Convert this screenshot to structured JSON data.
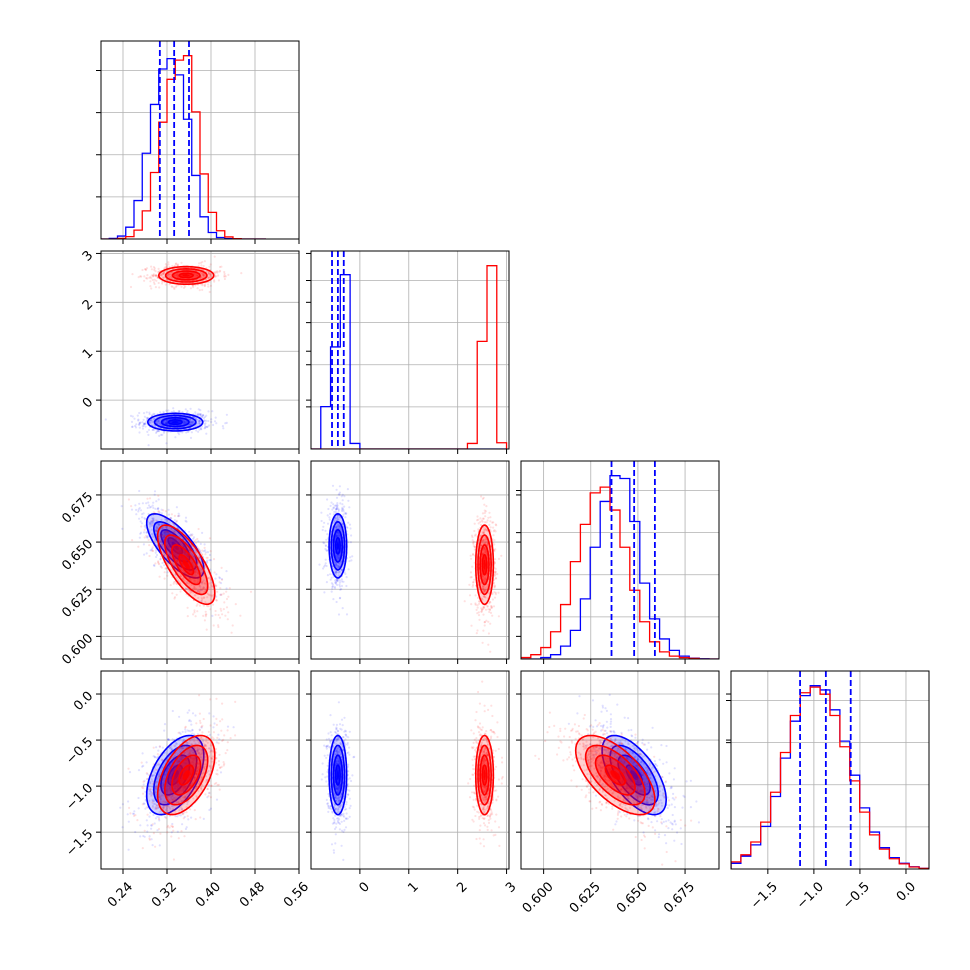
{
  "chart_data": {
    "type": "corner",
    "grid": true,
    "colors": {
      "series_a": "#0000ff",
      "series_b": "#ff0000"
    },
    "parameters": [
      {
        "range": [
          0.2,
          0.56
        ],
        "ticks": [
          "0.24",
          "0.32",
          "0.40",
          "0.48",
          "0.56"
        ],
        "tick_values": [
          0.24,
          0.32,
          0.4,
          0.48,
          0.56
        ]
      },
      {
        "range": [
          -1.0,
          3.05
        ],
        "ticks": [
          "0",
          "1",
          "2",
          "3"
        ],
        "tick_values": [
          0,
          1,
          2,
          3
        ]
      },
      {
        "range": [
          0.588,
          0.693
        ],
        "ticks": [
          "0.600",
          "0.625",
          "0.650",
          "0.675"
        ],
        "tick_values": [
          0.6,
          0.625,
          0.65,
          0.675
        ]
      },
      {
        "range": [
          -1.9,
          0.25
        ],
        "ticks": [
          "-1.5",
          "-1.0",
          "-0.5",
          "0.0"
        ],
        "tick_values": [
          -1.5,
          -1.0,
          -0.5,
          0.0
        ]
      }
    ],
    "y_ticks_rows": [
      null,
      {
        "ticks": [
          "3",
          "2",
          "1",
          "0"
        ],
        "tick_values": [
          3,
          2,
          1,
          0
        ]
      },
      {
        "ticks": [
          "0.675",
          "0.650",
          "0.625",
          "0.600"
        ],
        "tick_values": [
          0.675,
          0.65,
          0.625,
          0.6
        ]
      },
      {
        "ticks": [
          "0.0",
          "-0.5",
          "-1.0",
          "-1.5"
        ],
        "tick_values": [
          0.0,
          -0.5,
          -1.0,
          -1.5
        ]
      }
    ],
    "marginals": [
      {
        "quantiles": [
          0.307,
          0.333,
          0.36
        ],
        "bin_edges": [
          0.2,
          0.215,
          0.23,
          0.245,
          0.26,
          0.275,
          0.29,
          0.305,
          0.32,
          0.335,
          0.35,
          0.365,
          0.38,
          0.395,
          0.41,
          0.425,
          0.44,
          0.455,
          0.47,
          0.485,
          0.5
        ],
        "series_a": [
          0,
          2,
          10,
          40,
          130,
          290,
          455,
          575,
          610,
          555,
          405,
          215,
          75,
          22,
          5,
          1,
          0,
          0,
          0,
          0
        ],
        "series_b": [
          0,
          0,
          2,
          8,
          30,
          95,
          225,
          395,
          540,
          605,
          620,
          430,
          220,
          90,
          28,
          7,
          1,
          0,
          0,
          0
        ],
        "ymax": 620
      },
      {
        "quantiles": [
          -0.57,
          -0.45,
          -0.33
        ],
        "bin_edges": [
          -1.0,
          -0.8,
          -0.6,
          -0.4,
          -0.2,
          0.0,
          0.2,
          0.4,
          0.6,
          0.8,
          1.0,
          1.2,
          1.4,
          1.6,
          1.8,
          2.0,
          2.2,
          2.4,
          2.6,
          2.8,
          3.0
        ],
        "series_a": [
          0,
          610,
          1470,
          2510,
          80,
          0,
          0,
          0,
          0,
          0,
          0,
          0,
          0,
          0,
          0,
          0,
          0,
          0,
          0,
          0
        ],
        "series_b": [
          0,
          0,
          0,
          0,
          0,
          0,
          0,
          0,
          0,
          0,
          0,
          0,
          0,
          0,
          0,
          0,
          80,
          1550,
          2640,
          90
        ],
        "ymax": 2640
      },
      {
        "quantiles": [
          0.636,
          0.648,
          0.659
        ],
        "bin_edges": [
          0.588,
          0.5932,
          0.5985,
          0.6037,
          0.609,
          0.6142,
          0.6195,
          0.6247,
          0.63,
          0.6352,
          0.6405,
          0.6457,
          0.651,
          0.6562,
          0.6615,
          0.6667,
          0.672,
          0.6772,
          0.6825,
          0.6877,
          0.693
        ],
        "series_a": [
          0,
          0,
          5,
          15,
          45,
          100,
          210,
          390,
          550,
          640,
          630,
          480,
          265,
          140,
          70,
          30,
          10,
          3,
          1,
          0
        ],
        "series_b": [
          5,
          15,
          40,
          95,
          190,
          340,
          470,
          580,
          600,
          520,
          390,
          240,
          130,
          60,
          25,
          10,
          5,
          2,
          0,
          0
        ],
        "ymax": 640
      },
      {
        "quantiles": [
          -1.15,
          -0.87,
          -0.6
        ],
        "bin_edges": [
          -1.9,
          -1.7925,
          -1.685,
          -1.5775,
          -1.47,
          -1.3625,
          -1.255,
          -1.1475,
          -1.04,
          -0.9325,
          -0.825,
          -0.7175,
          -0.61,
          -0.5025,
          -0.395,
          -0.2875,
          -0.18,
          -0.0725,
          0.035,
          0.1425,
          0.25
        ],
        "series_a": [
          20,
          45,
          85,
          150,
          255,
          390,
          520,
          610,
          645,
          630,
          560,
          450,
          330,
          215,
          130,
          75,
          40,
          20,
          8,
          2
        ],
        "series_b": [
          25,
          50,
          95,
          165,
          270,
          410,
          540,
          620,
          640,
          615,
          540,
          430,
          310,
          200,
          120,
          70,
          36,
          18,
          7,
          2
        ],
        "ymax": 645
      }
    ],
    "pairs": [
      {
        "row": 1,
        "col": 0,
        "series_a": {
          "mean": [
            0.335,
            -0.45
          ],
          "sd": [
            0.025,
            0.09
          ],
          "rho": 0.0
        },
        "series_b": {
          "mean": [
            0.355,
            2.55
          ],
          "sd": [
            0.025,
            0.09
          ],
          "rho": 0.0
        }
      },
      {
        "row": 2,
        "col": 0,
        "series_a": {
          "mean": [
            0.335,
            0.648
          ],
          "sd": [
            0.026,
            0.0085
          ],
          "rho": -0.72
        },
        "series_b": {
          "mean": [
            0.355,
            0.638
          ],
          "sd": [
            0.026,
            0.0105
          ],
          "rho": -0.72
        }
      },
      {
        "row": 2,
        "col": 1,
        "series_a": {
          "mean": [
            -0.45,
            0.648
          ],
          "sd": [
            0.09,
            0.0085
          ],
          "rho": 0.0
        },
        "series_b": {
          "mean": [
            2.55,
            0.638
          ],
          "sd": [
            0.09,
            0.0105
          ],
          "rho": 0.0
        }
      },
      {
        "row": 3,
        "col": 0,
        "series_a": {
          "mean": [
            0.335,
            -0.88
          ],
          "sd": [
            0.026,
            0.215
          ],
          "rho": 0.5
        },
        "series_b": {
          "mean": [
            0.355,
            -0.88
          ],
          "sd": [
            0.026,
            0.215
          ],
          "rho": 0.5
        }
      },
      {
        "row": 3,
        "col": 1,
        "series_a": {
          "mean": [
            -0.45,
            -0.88
          ],
          "sd": [
            0.09,
            0.215
          ],
          "rho": 0.0
        },
        "series_b": {
          "mean": [
            2.55,
            -0.88
          ],
          "sd": [
            0.09,
            0.215
          ],
          "rho": 0.0
        }
      },
      {
        "row": 3,
        "col": 2,
        "series_a": {
          "mean": [
            0.648,
            -0.88
          ],
          "sd": [
            0.0085,
            0.215
          ],
          "rho": -0.62
        },
        "series_b": {
          "mean": [
            0.638,
            -0.88
          ],
          "sd": [
            0.0105,
            0.215
          ],
          "rho": -0.62
        }
      }
    ]
  }
}
